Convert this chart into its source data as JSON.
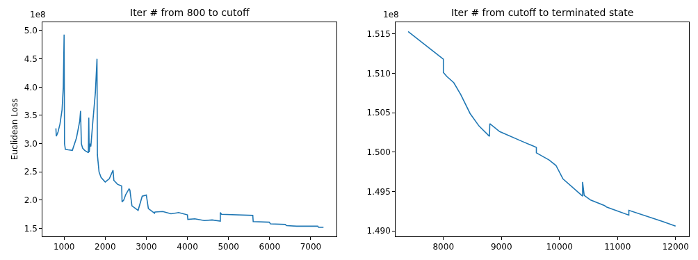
{
  "chart_data": [
    {
      "type": "line",
      "title": "Iter # from 800 to cutoff",
      "ylabel": "Euclidean Loss",
      "annotations": [
        "1e8"
      ],
      "x": [
        800,
        810,
        850,
        900,
        950,
        980,
        1000,
        1010,
        1030,
        1100,
        1200,
        1300,
        1380,
        1400,
        1420,
        1450,
        1500,
        1590,
        1600,
        1610,
        1630,
        1650,
        1700,
        1760,
        1800,
        1810,
        1850,
        1900,
        2000,
        2100,
        2190,
        2210,
        2300,
        2400,
        2410,
        2450,
        2500,
        2580,
        2600,
        2650,
        2800,
        2900,
        3000,
        3050,
        3200,
        3210,
        3400,
        3600,
        3786,
        4000,
        4010,
        4180,
        4410,
        4600,
        4800,
        4800,
        4830,
        5590,
        5600,
        5990,
        6020,
        6380,
        6410,
        6660,
        7170,
        7190,
        7310
      ],
      "series": [
        {
          "color": "#1f77b4",
          "values": [
            3.27,
            3.13,
            3.2,
            3.35,
            3.6,
            4.0,
            4.93,
            3.0,
            2.9,
            2.89,
            2.88,
            3.1,
            3.4,
            3.58,
            3.0,
            2.92,
            2.88,
            2.84,
            3.46,
            2.85,
            3.0,
            2.95,
            3.4,
            3.9,
            4.5,
            2.8,
            2.5,
            2.4,
            2.32,
            2.38,
            2.53,
            2.35,
            2.28,
            2.25,
            1.97,
            2.0,
            2.1,
            2.2,
            2.18,
            1.9,
            1.82,
            2.07,
            2.09,
            1.85,
            1.77,
            1.79,
            1.8,
            1.76,
            1.78,
            1.74,
            1.66,
            1.67,
            1.64,
            1.65,
            1.63,
            1.78,
            1.75,
            1.73,
            1.62,
            1.61,
            1.58,
            1.57,
            1.55,
            1.54,
            1.54,
            1.52,
            1.52
          ]
        }
      ],
      "xlim": [
        476,
        7625
      ],
      "ylim": [
        1.36,
        5.15
      ],
      "xticks": [
        1000,
        2000,
        3000,
        4000,
        5000,
        6000,
        7000
      ],
      "yticks": [
        1.5,
        {
          "value": 2,
          "label": "2.0"
        },
        2.5,
        {
          "value": 3,
          "label": "3.0"
        },
        3.5,
        {
          "value": 4,
          "label": "4.0"
        },
        4.5,
        {
          "value": 5,
          "label": "5.0"
        }
      ]
    },
    {
      "type": "line",
      "title": "Iter # from cutoff to terminated state",
      "annotations": [
        "1e8"
      ],
      "x": [
        7393,
        8000,
        8000,
        8060,
        8180,
        8300,
        8460,
        8615,
        8794,
        8800,
        8970,
        9343,
        9602,
        9602,
        9821,
        9940,
        10060,
        10398,
        10398,
        10426,
        10538,
        10777,
        10817,
        11195,
        11195,
        11773,
        12000
      ],
      "series": [
        {
          "color": "#1f77b4",
          "values": [
            1.5153,
            1.5118,
            1.5101,
            1.5096,
            1.5088,
            1.5073,
            1.5049,
            1.5033,
            1.502,
            1.5036,
            1.5026,
            1.5014,
            1.5006,
            1.4999,
            1.499,
            1.4983,
            1.4966,
            1.4944,
            1.4962,
            1.4945,
            1.4939,
            1.4932,
            1.493,
            1.492,
            1.4926,
            1.4912,
            1.4906
          ]
        }
      ],
      "xlim": [
        7180,
        12230
      ],
      "ylim": [
        1.4893,
        1.5165
      ],
      "xticks": [
        8000,
        9000,
        10000,
        11000,
        12000
      ],
      "yticks": [
        {
          "value": 1.49,
          "label": "1.490"
        },
        1.495,
        {
          "value": 1.5,
          "label": "1.500"
        },
        1.505,
        {
          "value": 1.51,
          "label": "1.510"
        },
        1.515
      ]
    }
  ]
}
